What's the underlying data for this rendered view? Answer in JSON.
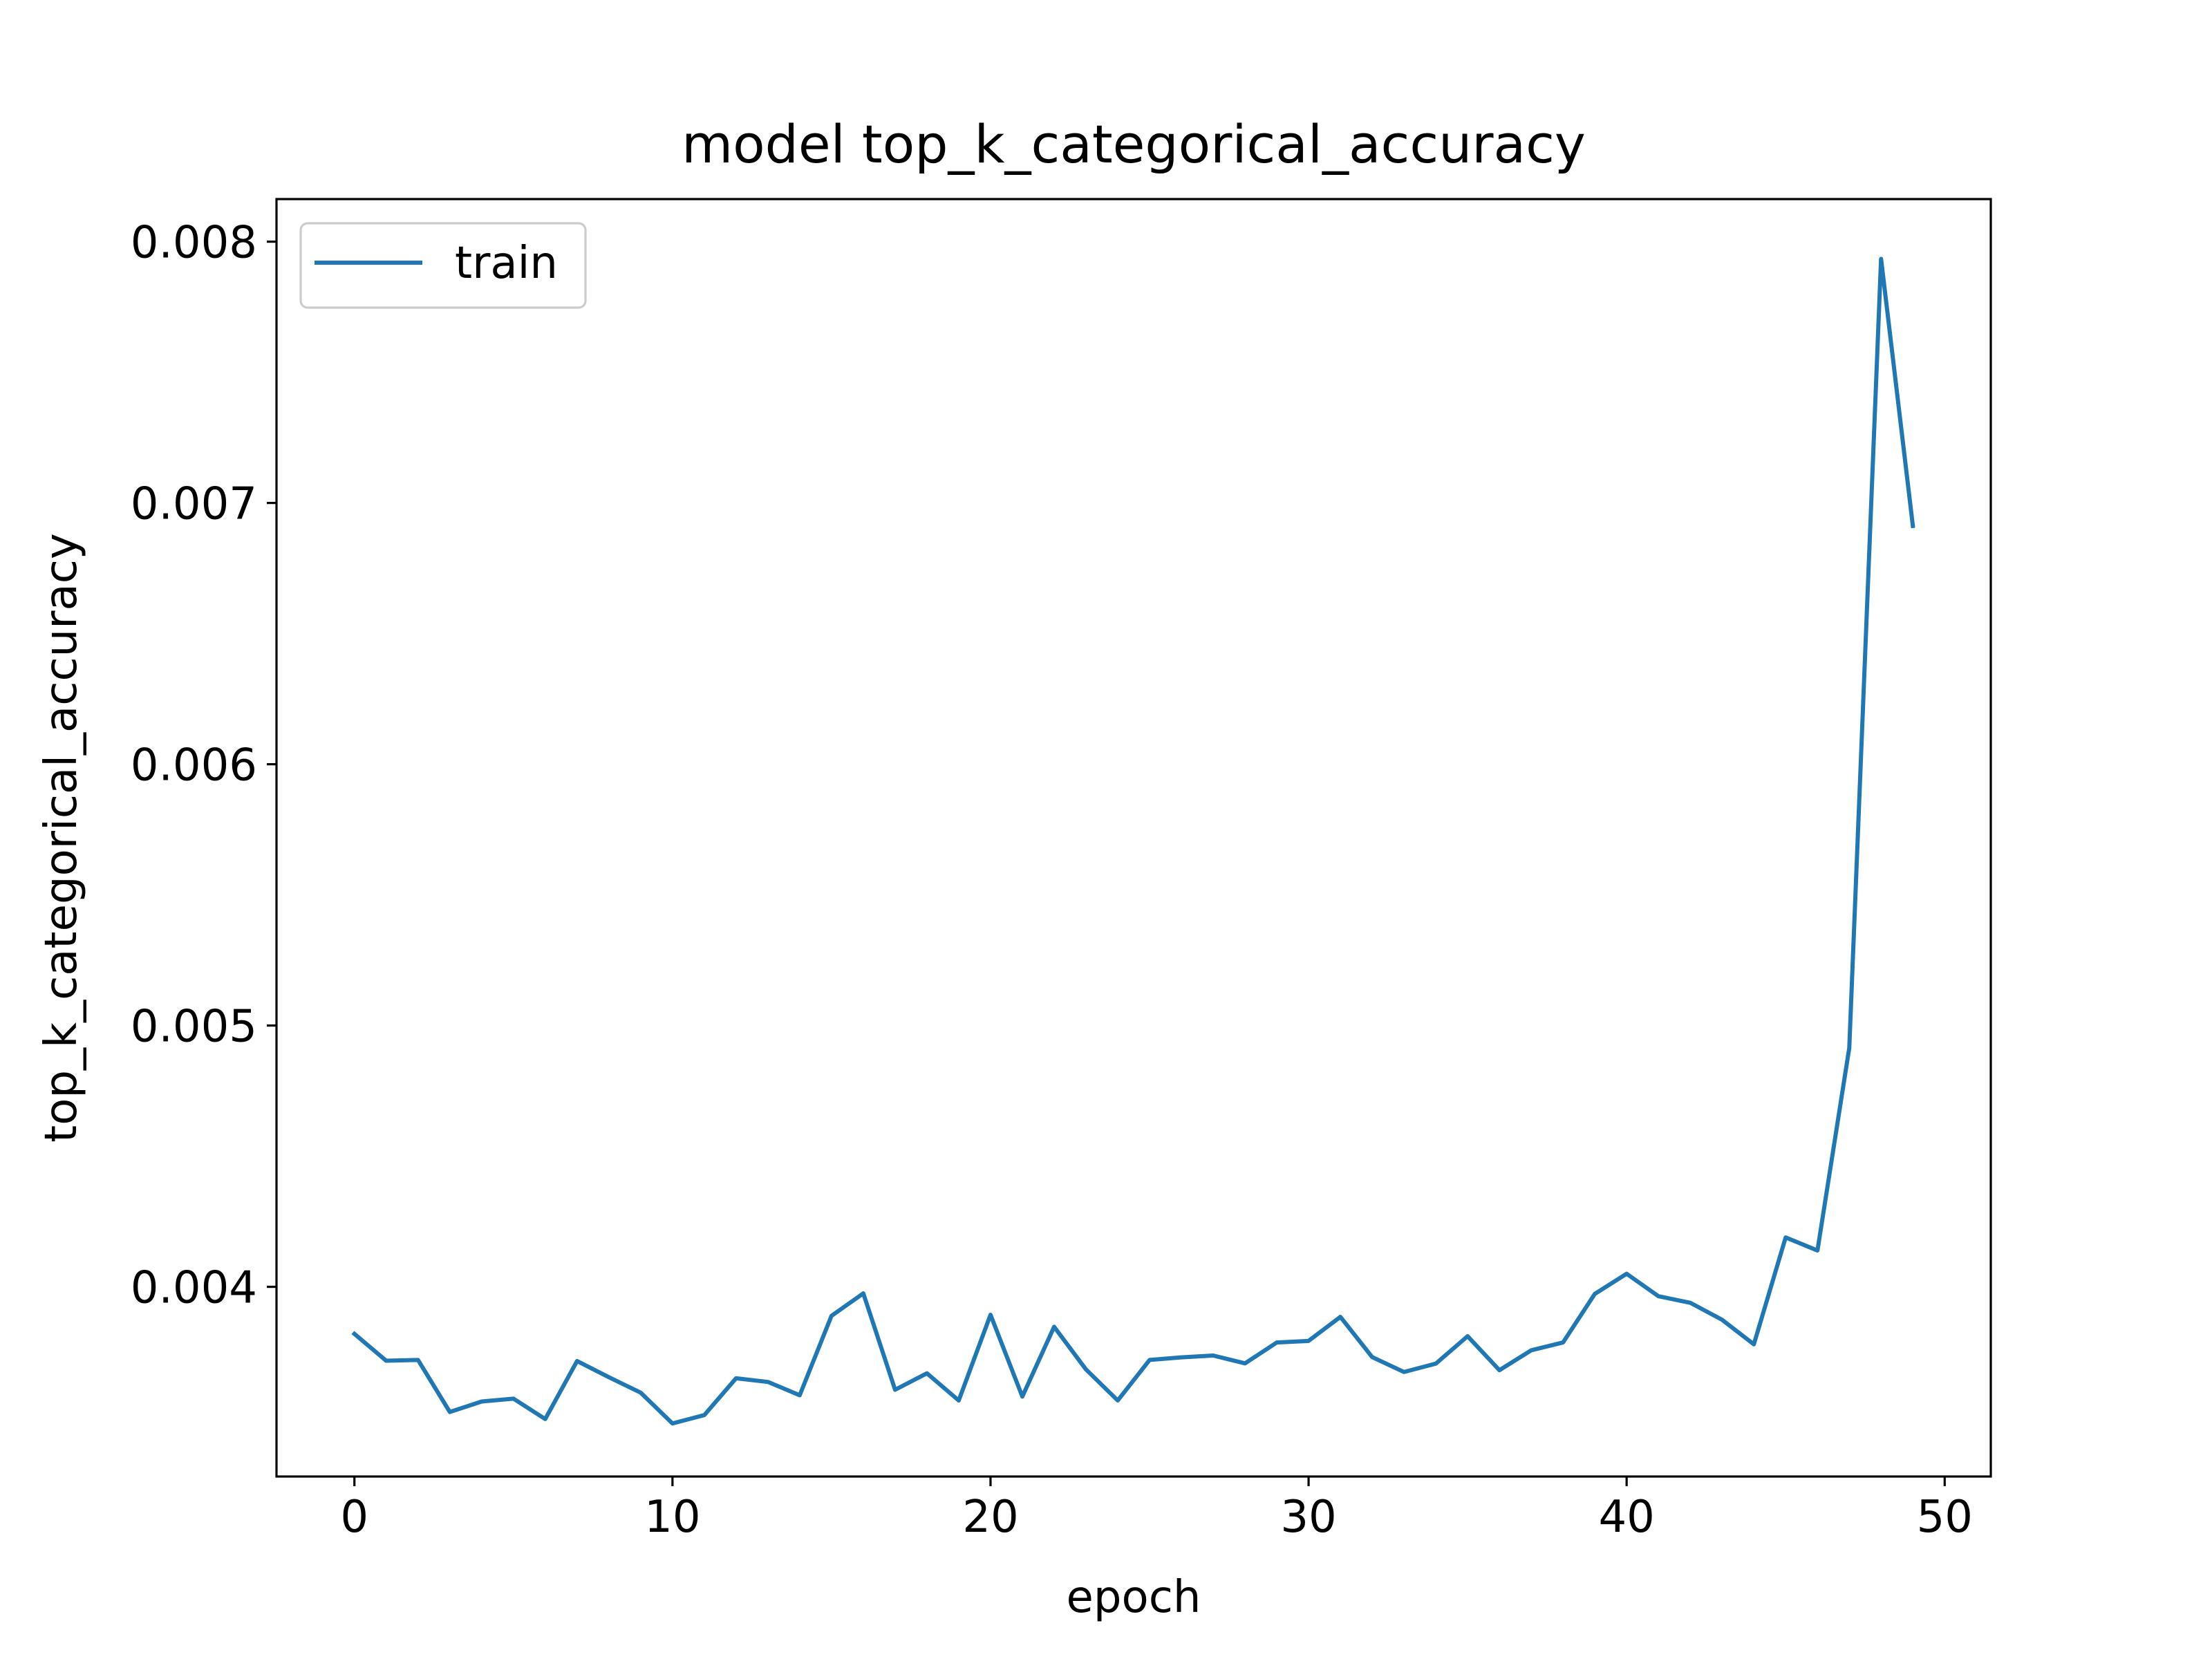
{
  "chart_data": {
    "type": "line",
    "title": "model top_k_categorical_accuracy",
    "xlabel": "epoch",
    "ylabel": "top_k_categorical_accuracy",
    "xlim": [
      -2.45,
      51.45
    ],
    "ylim": [
      0.003274,
      0.008163
    ],
    "x_ticks": [
      0,
      10,
      20,
      30,
      40,
      50
    ],
    "x_tick_labels": [
      "0",
      "10",
      "20",
      "30",
      "40",
      "50"
    ],
    "y_ticks": [
      0.004,
      0.005,
      0.006,
      0.007,
      0.008
    ],
    "y_tick_labels": [
      "0.004",
      "0.005",
      "0.006",
      "0.007",
      "0.008"
    ],
    "grid": false,
    "legend": {
      "placement": "top-left",
      "entries": [
        "train"
      ]
    },
    "series": [
      {
        "name": "train",
        "color": "#1f77b4",
        "x": [
          0,
          1,
          2,
          3,
          4,
          5,
          6,
          7,
          8,
          9,
          10,
          11,
          12,
          13,
          14,
          15,
          16,
          17,
          18,
          19,
          20,
          21,
          22,
          23,
          24,
          25,
          26,
          27,
          28,
          29,
          30,
          31,
          32,
          33,
          34,
          35,
          36,
          37,
          38,
          39,
          40,
          41,
          42,
          43,
          44,
          45,
          46,
          47,
          48,
          49
        ],
        "values": [
          0.00382,
          0.003717,
          0.00372,
          0.003521,
          0.003561,
          0.003572,
          0.003494,
          0.003716,
          0.003654,
          0.003595,
          0.003477,
          0.003509,
          0.00365,
          0.003636,
          0.003585,
          0.003889,
          0.003975,
          0.003606,
          0.003669,
          0.003565,
          0.003893,
          0.00358,
          0.003847,
          0.003684,
          0.003565,
          0.00372,
          0.00373,
          0.003737,
          0.003707,
          0.003787,
          0.003793,
          0.003885,
          0.003731,
          0.003674,
          0.003706,
          0.003811,
          0.003681,
          0.003757,
          0.003787,
          0.003973,
          0.00405,
          0.003964,
          0.003939,
          0.003874,
          0.00378,
          0.004189,
          0.004139,
          0.004914,
          0.007934,
          0.006912
        ]
      }
    ]
  }
}
